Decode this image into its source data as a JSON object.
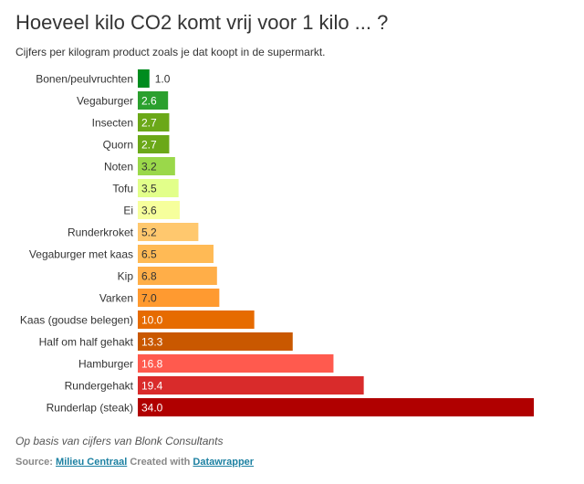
{
  "title": "Hoeveel kilo CO2 komt vrij voor 1 kilo ... ?",
  "subtitle": "Cijfers per kilogram product zoals je dat koopt in de supermarkt.",
  "notes": "Op basis van cijfers van Blonk Consultants",
  "source": {
    "label": "Source:",
    "source_link": "Milieu Centraal",
    "created_label": "Created with",
    "tool_link": "Datawrapper"
  },
  "chart_data": {
    "type": "bar",
    "orientation": "horizontal",
    "title": "Hoeveel kilo CO2 komt vrij voor 1 kilo ... ?",
    "categories": [
      "Bonen/peulvruchten",
      "Vegaburger",
      "Insecten",
      "Quorn",
      "Noten",
      "Tofu",
      "Ei",
      "Runderkroket",
      "Vegaburger met kaas",
      "Kip",
      "Varken",
      "Kaas (goudse belegen)",
      "Half om half gehakt",
      "Hamburger",
      "Rundergehakt",
      "Runderlap (steak)"
    ],
    "values": [
      1.0,
      2.6,
      2.7,
      2.7,
      3.2,
      3.5,
      3.6,
      5.2,
      6.5,
      6.8,
      7.0,
      10.0,
      13.3,
      16.8,
      19.4,
      34.0
    ],
    "colors": [
      "#008c1e",
      "#2ba02e",
      "#6ba818",
      "#6ba818",
      "#9ad84a",
      "#e2ff8a",
      "#f6ff9c",
      "#ffc86e",
      "#ffba55",
      "#ffae48",
      "#ff9a30",
      "#e66b00",
      "#c95800",
      "#ff5a4e",
      "#d92b2b",
      "#b00000"
    ],
    "label_colors": [
      "#333",
      "#fff",
      "#fff",
      "#fff",
      "#333",
      "#333",
      "#333",
      "#333",
      "#333",
      "#333",
      "#333",
      "#fff",
      "#fff",
      "#fff",
      "#fff",
      "#fff"
    ],
    "xlim": [
      0,
      34
    ],
    "grid": false
  }
}
